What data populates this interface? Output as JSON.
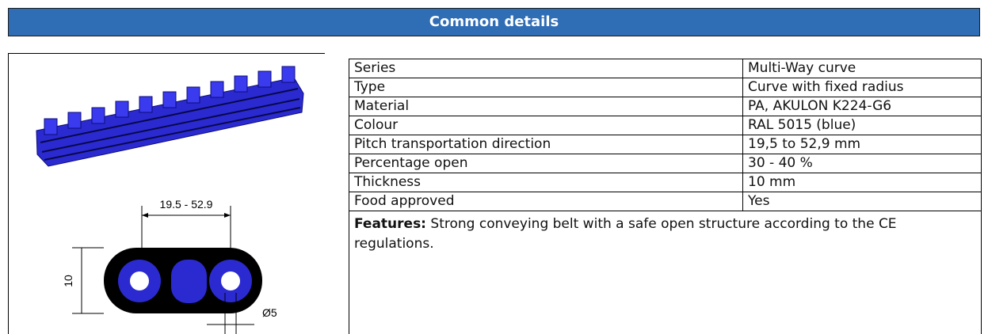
{
  "header": {
    "title": "Common details"
  },
  "figure": {
    "dimension_labels": [
      "19.5 - 52.9",
      "10",
      "Ø5"
    ]
  },
  "table": {
    "rows": [
      [
        "Series",
        "Multi-Way curve"
      ],
      [
        "Type",
        "Curve with fixed radius"
      ],
      [
        "Material",
        "PA, AKULON K224-G6"
      ],
      [
        "Colour",
        "RAL 5015 (blue)"
      ],
      [
        "Pitch transportation direction",
        "19,5 to 52,9 mm"
      ],
      [
        "Percentage open",
        "30 - 40 %"
      ],
      [
        "Thickness",
        "10 mm"
      ],
      [
        "Food approved",
        "Yes"
      ]
    ]
  },
  "features": {
    "label": "Features:",
    "text": "Strong conveying belt with a safe open structure according to the CE regulations."
  }
}
